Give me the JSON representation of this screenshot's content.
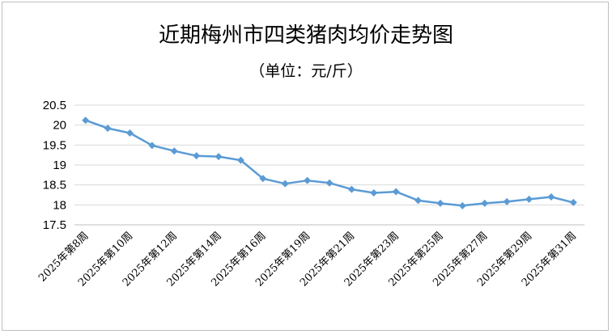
{
  "chart_data": {
    "type": "line",
    "title": "近期梅州市四类猪肉均价走势图",
    "subtitle": "（单位：元/斤）",
    "x": [
      "2025年第8周",
      "2025年第9周",
      "2025年第10周",
      "2025年第11周",
      "2025年第12周",
      "2025年第13周",
      "2025年第14周",
      "2025年第15周",
      "2025年第16周",
      "2025年第18周",
      "2025年第19周",
      "2025年第20周",
      "2025年第21周",
      "2025年第22周",
      "2025年第23周",
      "2025年第24周",
      "2025年第25周",
      "2025年第26周",
      "2025年第27周",
      "2025年第28周",
      "2025年第29周",
      "2025年第30周",
      "2025年第31周"
    ],
    "x_labels_shown": [
      "2025年第8周",
      "2025年第10周",
      "2025年第12周",
      "2025年第14周",
      "2025年第16周",
      "2025年第19周",
      "2025年第21周",
      "2025年第23周",
      "2025年第25周",
      "2025年第27周",
      "2025年第29周",
      "2025年第31周"
    ],
    "series": [
      {
        "values": [
          20.12,
          19.92,
          19.8,
          19.49,
          19.35,
          19.23,
          19.21,
          19.12,
          18.66,
          18.53,
          18.61,
          18.55,
          18.39,
          18.3,
          18.33,
          18.11,
          18.04,
          17.98,
          18.04,
          18.08,
          18.14,
          18.2,
          18.06
        ],
        "color": "#5b9bd5"
      }
    ],
    "ylim": [
      17.5,
      20.5
    ],
    "yticks": [
      "17.5",
      "18",
      "18.5",
      "19",
      "19.5",
      "20",
      "20.5"
    ],
    "ytick_values": [
      17.5,
      18,
      18.5,
      19,
      19.5,
      20,
      20.5
    ],
    "grid": true,
    "legend": "none"
  }
}
